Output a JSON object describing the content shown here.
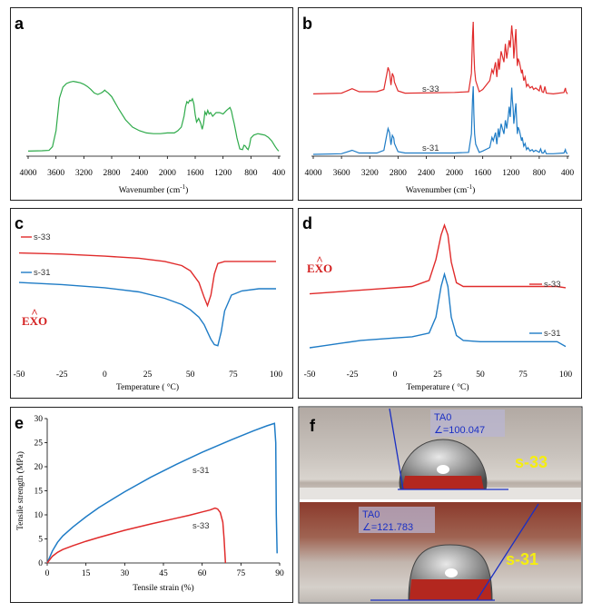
{
  "chart_data": [
    {
      "panel": "a",
      "type": "line",
      "xlabel": "Wavenumber  (cm",
      "xlabel_sup": "-1",
      "xlabel_tail": ")",
      "xlim": [
        4000,
        400
      ],
      "xticks": [
        4000,
        3600,
        3200,
        2800,
        2400,
        2000,
        1600,
        1200,
        800,
        400
      ],
      "series": [
        {
          "color": "#2eaa4a",
          "x": [
            4000,
            3800,
            3700,
            3650,
            3600,
            3550,
            3500,
            3450,
            3400,
            3350,
            3300,
            3250,
            3200,
            3150,
            3100,
            3050,
            3000,
            2950,
            2920,
            2900,
            2880,
            2850,
            2800,
            2700,
            2600,
            2500,
            2400,
            2300,
            2200,
            2100,
            2000,
            1900,
            1850,
            1800,
            1760,
            1740,
            1720,
            1700,
            1680,
            1660,
            1640,
            1620,
            1600,
            1580,
            1550,
            1520,
            1500,
            1480,
            1460,
            1440,
            1420,
            1400,
            1380,
            1350,
            1300,
            1250,
            1200,
            1150,
            1100,
            1080,
            1060,
            1040,
            1020,
            1000,
            960,
            920,
            900,
            880,
            860,
            840,
            820,
            800,
            760,
            700,
            650,
            600,
            550,
            500,
            450,
            420,
            400
          ],
          "y": [
            0.02,
            0.025,
            0.03,
            0.08,
            0.3,
            0.75,
            0.9,
            0.95,
            0.97,
            0.98,
            0.97,
            0.96,
            0.94,
            0.91,
            0.87,
            0.82,
            0.8,
            0.82,
            0.84,
            0.86,
            0.84,
            0.82,
            0.77,
            0.6,
            0.45,
            0.35,
            0.3,
            0.27,
            0.26,
            0.26,
            0.27,
            0.27,
            0.3,
            0.35,
            0.5,
            0.63,
            0.7,
            0.68,
            0.72,
            0.71,
            0.74,
            0.67,
            0.52,
            0.42,
            0.47,
            0.4,
            0.32,
            0.4,
            0.56,
            0.52,
            0.58,
            0.53,
            0.55,
            0.5,
            0.55,
            0.55,
            0.53,
            0.58,
            0.62,
            0.57,
            0.48,
            0.4,
            0.3,
            0.2,
            0.05,
            0.04,
            0.1,
            0.09,
            0.06,
            0.04,
            0.1,
            0.2,
            0.24,
            0.26,
            0.25,
            0.24,
            0.21,
            0.16,
            0.08,
            0.04,
            0.02
          ]
        }
      ]
    },
    {
      "panel": "b",
      "type": "line",
      "xlabel": "Wavenumber  (cm",
      "xlabel_sup": "-1",
      "xlabel_tail": ")",
      "xlim": [
        4000,
        400
      ],
      "xticks": [
        4000,
        3600,
        3200,
        2800,
        2400,
        2000,
        1600,
        1200,
        800,
        400
      ],
      "series": [
        {
          "name": "s-33",
          "color": "#e02b2b",
          "offset": 0.55,
          "x": [
            4000,
            3600,
            3450,
            3350,
            3100,
            3000,
            2960,
            2940,
            2920,
            2900,
            2880,
            2860,
            2850,
            2800,
            2700,
            2000,
            1800,
            1760,
            1745,
            1735,
            1725,
            1715,
            1700,
            1650,
            1600,
            1500,
            1470,
            1450,
            1420,
            1400,
            1380,
            1365,
            1340,
            1300,
            1280,
            1260,
            1240,
            1225,
            1210,
            1190,
            1180,
            1170,
            1160,
            1130,
            1120,
            1110,
            1100,
            1080,
            1050,
            1040,
            1020,
            1000,
            980,
            960,
            930,
            900,
            880,
            850,
            800,
            780,
            760,
            740,
            720,
            700,
            600,
            450,
            430,
            420,
            400
          ],
          "y": [
            0.02,
            0.03,
            0.09,
            0.05,
            0.05,
            0.08,
            0.28,
            0.38,
            0.32,
            0.14,
            0.3,
            0.25,
            0.18,
            0.06,
            0.03,
            0.04,
            0.05,
            0.3,
            0.8,
            1.0,
            0.6,
            0.35,
            0.2,
            0.05,
            0.08,
            0.2,
            0.35,
            0.3,
            0.45,
            0.25,
            0.5,
            0.35,
            0.6,
            0.45,
            0.7,
            0.5,
            0.65,
            0.75,
            0.65,
            0.95,
            0.85,
            0.75,
            0.5,
            0.9,
            0.6,
            0.4,
            0.5,
            0.45,
            0.3,
            0.35,
            0.2,
            0.25,
            0.12,
            0.15,
            0.1,
            0.12,
            0.08,
            0.1,
            0.06,
            0.14,
            0.05,
            0.04,
            0.12,
            0.03,
            0.02,
            0.04,
            0.1,
            0.05,
            0.02
          ]
        },
        {
          "name": "s-31",
          "color": "#1f7cc6",
          "offset": 0.0,
          "x": [
            4000,
            3600,
            3450,
            3350,
            3100,
            3000,
            2960,
            2940,
            2920,
            2900,
            2880,
            2860,
            2850,
            2800,
            2700,
            2000,
            1800,
            1760,
            1745,
            1735,
            1725,
            1715,
            1700,
            1650,
            1600,
            1500,
            1470,
            1450,
            1420,
            1400,
            1380,
            1365,
            1340,
            1300,
            1280,
            1260,
            1240,
            1225,
            1210,
            1190,
            1180,
            1170,
            1160,
            1130,
            1120,
            1110,
            1100,
            1080,
            1050,
            1040,
            1020,
            1000,
            980,
            960,
            930,
            900,
            880,
            850,
            800,
            780,
            760,
            740,
            720,
            700,
            600,
            450,
            430,
            420,
            400
          ],
          "y": [
            0.0,
            0.01,
            0.06,
            0.02,
            0.02,
            0.06,
            0.28,
            0.38,
            0.32,
            0.14,
            0.28,
            0.24,
            0.16,
            0.04,
            0.02,
            0.02,
            0.03,
            0.3,
            0.8,
            1.0,
            0.6,
            0.3,
            0.15,
            0.03,
            0.05,
            0.1,
            0.25,
            0.2,
            0.32,
            0.15,
            0.38,
            0.25,
            0.45,
            0.3,
            0.5,
            0.38,
            0.55,
            0.7,
            0.55,
            0.98,
            0.8,
            0.68,
            0.45,
            0.75,
            0.5,
            0.3,
            0.4,
            0.35,
            0.2,
            0.25,
            0.12,
            0.16,
            0.07,
            0.1,
            0.05,
            0.07,
            0.04,
            0.06,
            0.03,
            0.08,
            0.02,
            0.02,
            0.06,
            0.01,
            0.01,
            0.02,
            0.07,
            0.03,
            0.01
          ]
        }
      ]
    },
    {
      "panel": "c",
      "type": "line",
      "xlabel": "Temperature  (",
      "xlabel_deg": "°C)",
      "xlim": [
        -50,
        100
      ],
      "xticks": [
        -50,
        -25,
        0,
        25,
        50,
        75,
        100
      ],
      "annotation": "EXO",
      "series": [
        {
          "name": "s-33",
          "color": "#e02b2b",
          "x": [
            -50,
            -25,
            0,
            20,
            35,
            45,
            50,
            55,
            58,
            60,
            62,
            64,
            66,
            70,
            80,
            100
          ],
          "y": [
            0.9,
            0.89,
            0.87,
            0.85,
            0.82,
            0.78,
            0.73,
            0.62,
            0.48,
            0.4,
            0.5,
            0.7,
            0.8,
            0.82,
            0.82,
            0.82
          ]
        },
        {
          "name": "s-31",
          "color": "#1f7cc6",
          "x": [
            -50,
            -25,
            0,
            20,
            35,
            45,
            50,
            55,
            58,
            60,
            62,
            64,
            66,
            68,
            70,
            74,
            80,
            90,
            100
          ],
          "y": [
            0.62,
            0.6,
            0.57,
            0.53,
            0.47,
            0.41,
            0.36,
            0.29,
            0.22,
            0.15,
            0.08,
            0.03,
            0.02,
            0.15,
            0.35,
            0.5,
            0.54,
            0.56,
            0.56
          ]
        }
      ]
    },
    {
      "panel": "d",
      "type": "line",
      "xlabel": "Temperature  (",
      "xlabel_deg": "°C)",
      "xlim": [
        -50,
        100
      ],
      "xticks": [
        -50,
        -25,
        0,
        25,
        50,
        75,
        100
      ],
      "annotation": "EXO",
      "series": [
        {
          "name": "s-33",
          "color": "#e02b2b",
          "x": [
            -50,
            -30,
            -10,
            10,
            20,
            24,
            27,
            29,
            31,
            33,
            36,
            40,
            50,
            75,
            95,
            100
          ],
          "y": [
            0.44,
            0.46,
            0.48,
            0.5,
            0.55,
            0.72,
            0.92,
            1.0,
            0.92,
            0.7,
            0.53,
            0.5,
            0.5,
            0.5,
            0.5,
            0.49
          ]
        },
        {
          "name": "s-31",
          "color": "#1f7cc6",
          "x": [
            -50,
            -40,
            -30,
            -20,
            -10,
            0,
            10,
            20,
            24,
            27,
            29,
            31,
            33,
            36,
            40,
            50,
            75,
            95,
            100
          ],
          "y": [
            0.0,
            0.02,
            0.04,
            0.06,
            0.07,
            0.08,
            0.09,
            0.12,
            0.25,
            0.5,
            0.6,
            0.5,
            0.25,
            0.1,
            0.06,
            0.05,
            0.05,
            0.05,
            0.01
          ]
        }
      ]
    },
    {
      "panel": "e",
      "type": "line",
      "xlabel": "Tensile strain (%)",
      "ylabel": "Tensile strength (MPa)",
      "xlim": [
        0,
        90
      ],
      "ylim": [
        0,
        30
      ],
      "xticks": [
        0,
        15,
        30,
        45,
        60,
        75,
        90
      ],
      "yticks": [
        0,
        5,
        10,
        15,
        20,
        25,
        30
      ],
      "series": [
        {
          "name": "s-31",
          "color": "#1f7cc6",
          "x": [
            0,
            2,
            4,
            6,
            10,
            15,
            20,
            30,
            40,
            50,
            60,
            70,
            80,
            85,
            88,
            88.5,
            88.7,
            89
          ],
          "y": [
            0,
            2.5,
            4.3,
            5.6,
            7.5,
            9.6,
            11.5,
            14.8,
            17.8,
            20.5,
            23.0,
            25.3,
            27.5,
            28.5,
            29.0,
            25,
            10,
            2
          ]
        },
        {
          "name": "s-33",
          "color": "#e02b2b",
          "x": [
            0,
            2,
            4,
            6,
            10,
            15,
            20,
            30,
            40,
            50,
            55,
            60,
            63,
            65,
            66,
            67,
            68,
            68.5,
            68.8,
            69
          ],
          "y": [
            0,
            1.4,
            2.2,
            2.8,
            3.6,
            4.5,
            5.3,
            6.8,
            8.1,
            9.3,
            9.9,
            10.6,
            11.0,
            11.4,
            11.2,
            10.5,
            8.5,
            5,
            2,
            0
          ]
        }
      ]
    },
    {
      "panel": "f",
      "type": "image",
      "photos": [
        {
          "sample": "s-33",
          "tag": "TA0",
          "angle_prefix": "∠=",
          "angle": "100.047"
        },
        {
          "sample": "s-31",
          "tag": "TA0",
          "angle_prefix": "∠=",
          "angle": "121.783"
        }
      ]
    }
  ]
}
